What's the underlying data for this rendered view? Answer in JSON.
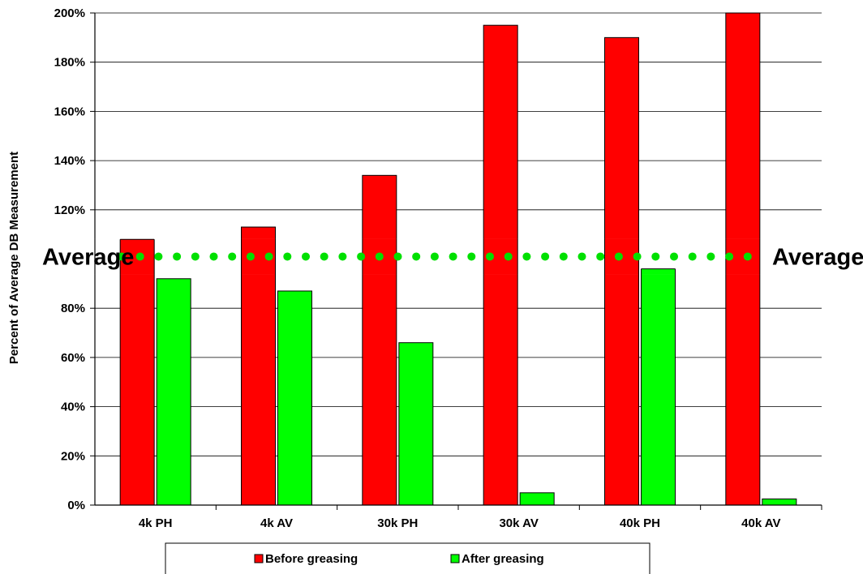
{
  "chart_data": {
    "type": "bar",
    "title": "",
    "xlabel": "",
    "ylabel": "Percent of Average DB Measurement",
    "ylim": [
      0,
      200
    ],
    "yticks": [
      "0%",
      "20%",
      "40%",
      "60%",
      "80%",
      "120%",
      "140%",
      "160%",
      "180%",
      "200%"
    ],
    "ytick_values": [
      0,
      20,
      40,
      60,
      80,
      120,
      140,
      160,
      180,
      200
    ],
    "categories": [
      "4k PH",
      "4k AV",
      "30k PH",
      "30k AV",
      "40k PH",
      "40k AV"
    ],
    "series": [
      {
        "name": "Before greasing",
        "color": "#ff0000",
        "values": [
          108,
          113,
          134,
          195,
          190,
          200
        ]
      },
      {
        "name": "After greasing",
        "color": "#00ff00",
        "values": [
          92,
          87,
          66,
          5,
          96,
          2.5
        ]
      }
    ],
    "reference_line": {
      "value": 101,
      "label_left": "Average",
      "label_right": "Average",
      "color": "#00e000",
      "style": "dotted"
    },
    "grid": "horizontal",
    "legend": "bottom"
  }
}
